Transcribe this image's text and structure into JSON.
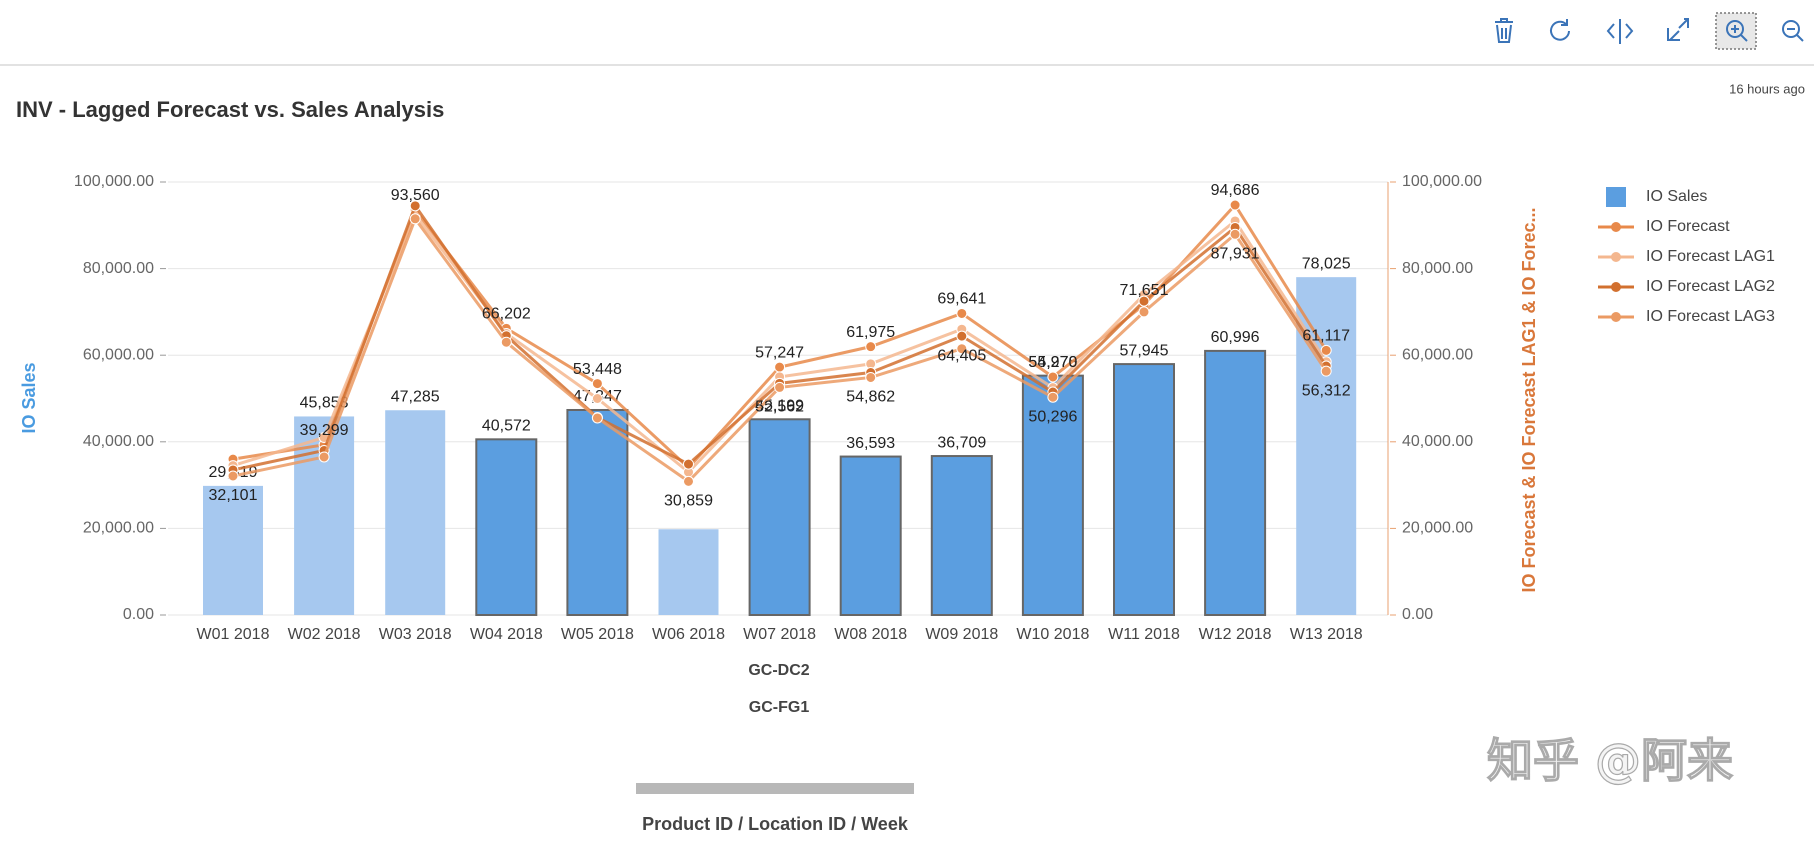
{
  "header": {
    "timestamp": "16 hours ago"
  },
  "chart_data": {
    "type": "combo",
    "title": "INV - Lagged Forecast vs. Sales Analysis",
    "categories": [
      "W01 2018",
      "W02 2018",
      "W03 2018",
      "W04 2018",
      "W05 2018",
      "W06 2018",
      "W07 2018",
      "W08 2018",
      "W09 2018",
      "W10 2018",
      "W11 2018",
      "W12 2018",
      "W13 2018"
    ],
    "x_axis_levels": [
      "GC-DC2",
      "GC-FG1"
    ],
    "xlabel": "Product ID / Location ID / Week",
    "ylabel": "IO Sales",
    "y2label": "IO Forecast & IO Forecast LAG1 & IO Forec...",
    "ylim": [
      0,
      100000
    ],
    "yticks": [
      {
        "value": 0,
        "label": "0.00"
      },
      {
        "value": 20000,
        "label": "20,000.00"
      },
      {
        "value": 40000,
        "label": "40,000.00"
      },
      {
        "value": 60000,
        "label": "60,000.00"
      },
      {
        "value": 80000,
        "label": "80,000.00"
      },
      {
        "value": 100000,
        "label": "100,000.00"
      }
    ],
    "y2lim": [
      0,
      100000
    ],
    "y2ticks": [
      {
        "value": 0,
        "label": "0.00"
      },
      {
        "value": 20000,
        "label": "20,000.00"
      },
      {
        "value": 40000,
        "label": "40,000.00"
      },
      {
        "value": 60000,
        "label": "60,000.00"
      },
      {
        "value": 80000,
        "label": "80,000.00"
      },
      {
        "value": 100000,
        "label": "100,000.00"
      }
    ],
    "grid": true,
    "legend": "right",
    "series": [
      {
        "name": "IO Sales",
        "type": "bar",
        "color": "#5b9ee0",
        "colors": [
          "#a6c8ef",
          "#a6c8ef",
          "#a6c8ef",
          "#5b9ee0",
          "#5b9ee0",
          "#a6c8ef",
          "#5b9ee0",
          "#5b9ee0",
          "#5b9ee0",
          "#5b9ee0",
          "#5b9ee0",
          "#5b9ee0",
          "#a6c8ef"
        ],
        "values": [
          29819,
          45853,
          47285,
          40572,
          47347,
          19800,
          45199,
          36593,
          36709,
          55278,
          57945,
          60996,
          78025
        ],
        "value_labels": [
          "29,819",
          "45,853",
          "47,285",
          "40,572",
          "47,347",
          null,
          "45,199",
          "36,593",
          "36,709",
          "55,278",
          "57,945",
          "60,996",
          "78,025"
        ]
      },
      {
        "name": "IO Forecast",
        "type": "line",
        "axis": "y2",
        "color": "#e8894a",
        "values": [
          36000,
          39299,
          93560,
          66202,
          53448,
          34000,
          57247,
          61975,
          69641,
          54970,
          71651,
          94686,
          61117
        ],
        "value_labels": [
          null,
          "39,299",
          "93,560",
          "66,202",
          "53,448",
          null,
          "57,247",
          "61,975",
          "69,641",
          "54,970",
          "71,651",
          "94,686",
          "61,117"
        ]
      },
      {
        "name": "IO Forecast LAG1",
        "type": "line",
        "axis": "y2",
        "color": "#f4b78f",
        "values": [
          34500,
          41000,
          92500,
          65000,
          50000,
          33000,
          55000,
          58000,
          66000,
          52500,
          74000,
          91000,
          58500
        ]
      },
      {
        "name": "IO Forecast LAG2",
        "type": "line",
        "axis": "y2",
        "color": "#d2702f",
        "values": [
          33500,
          38000,
          94500,
          64500,
          45600,
          34855,
          53500,
          56000,
          64405,
          51500,
          72500,
          89500,
          57500
        ],
        "value_labels": [
          null,
          null,
          null,
          null,
          null,
          null,
          null,
          null,
          "64,405",
          null,
          null,
          null,
          null
        ]
      },
      {
        "name": "IO Forecast LAG3",
        "type": "line",
        "axis": "y2",
        "color": "#eb9a63",
        "values": [
          32101,
          36500,
          91500,
          63000,
          45500,
          30859,
          52562,
          54862,
          61500,
          50296,
          70000,
          87931,
          56312
        ],
        "value_labels": [
          "32,101",
          null,
          null,
          null,
          null,
          "30,859",
          "52,562",
          "54,862",
          null,
          "50,296",
          null,
          "87,931",
          "56,312"
        ]
      }
    ]
  },
  "watermark": "知乎 @阿来"
}
